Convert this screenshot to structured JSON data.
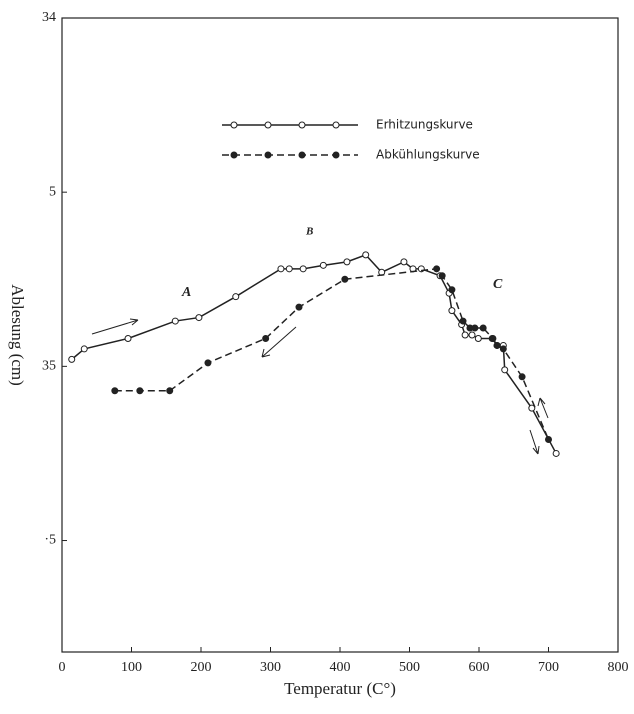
{
  "chart_data": {
    "type": "line",
    "x_label": "Temperatur (C°)",
    "y_label": "Ablesung (cm)",
    "xlim": [
      0,
      800
    ],
    "xticks": [
      0,
      100,
      200,
      300,
      400,
      500,
      600,
      700,
      800
    ],
    "ylim": [
      35.82,
      34
    ],
    "yticks": [
      {
        "value": 34,
        "label": "34"
      },
      {
        "value": 34.5,
        "label": "5"
      },
      35,
      {
        "value": 35.5,
        "label": "·5"
      }
    ],
    "annotations": [
      "A",
      "B",
      "C"
    ],
    "series": [
      {
        "name": "Erhitzungskurve",
        "color": "#222",
        "style": "solid",
        "marker": "open",
        "x": [
          14,
          32,
          95,
          163,
          197,
          250,
          315,
          327,
          347,
          376,
          410,
          437,
          460,
          492,
          505,
          517,
          544,
          557,
          561,
          575,
          580,
          590,
          599,
          619,
          626,
          635,
          637,
          676,
          711
        ],
        "values": [
          34.98,
          34.95,
          34.92,
          34.87,
          34.86,
          34.8,
          34.72,
          34.72,
          34.72,
          34.71,
          34.7,
          34.68,
          34.73,
          34.7,
          34.72,
          34.72,
          34.74,
          34.79,
          34.84,
          34.88,
          34.91,
          34.91,
          34.92,
          34.92,
          34.94,
          34.94,
          35.01,
          35.12,
          35.25
        ]
      },
      {
        "name": "Abkühlungskurve",
        "color": "#222",
        "style": "dashed",
        "marker": "filled",
        "x": [
          76,
          112,
          155,
          210,
          293,
          341,
          407,
          539,
          547,
          561,
          577,
          587,
          594,
          606,
          620,
          626,
          635,
          662,
          700
        ],
        "values": [
          35.07,
          35.07,
          35.07,
          34.99,
          34.92,
          34.83,
          34.75,
          34.72,
          34.74,
          34.78,
          34.87,
          34.89,
          34.89,
          34.89,
          34.92,
          34.94,
          34.95,
          35.03,
          35.21
        ]
      }
    ]
  }
}
